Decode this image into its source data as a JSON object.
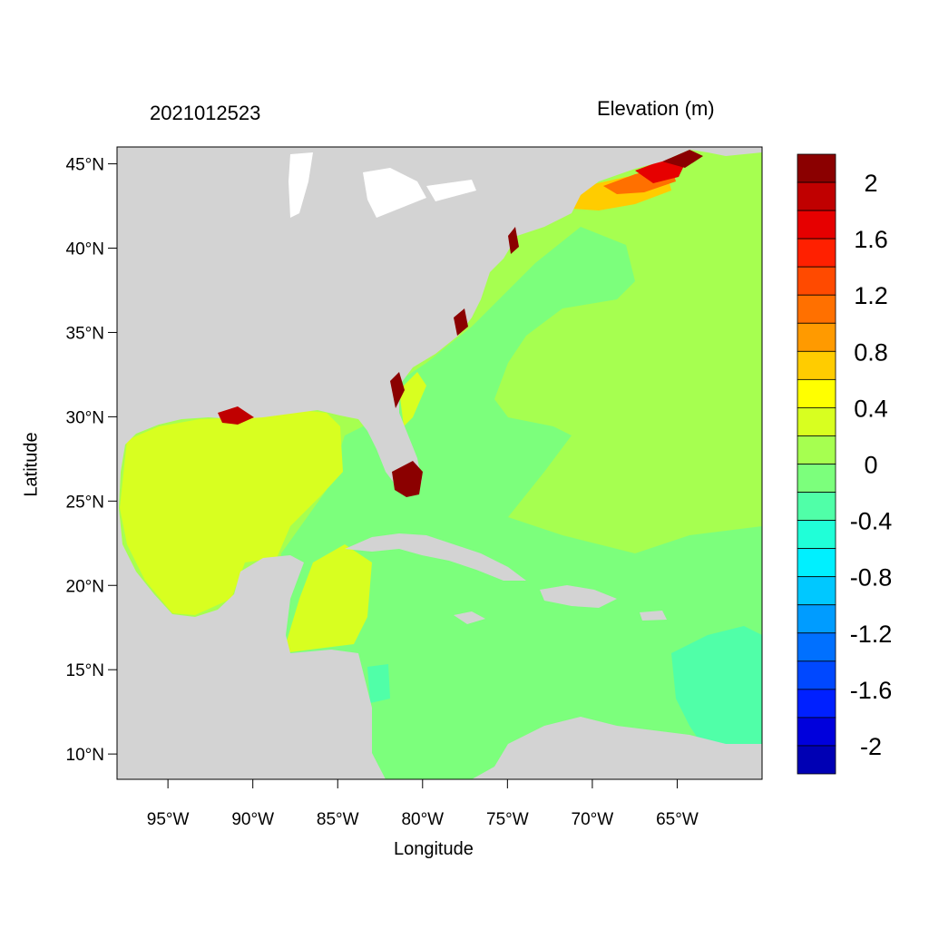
{
  "header": {
    "timestamp": "2021012523",
    "variable": "Elevation (m)"
  },
  "axes": {
    "x_title": "Longitude",
    "y_title": "Latitude",
    "lat_ticks": [
      "45°N",
      "40°N",
      "35°N",
      "30°N",
      "25°N",
      "20°N",
      "15°N",
      "10°N"
    ],
    "lon_ticks": [
      "95°W",
      "90°W",
      "85°W",
      "80°W",
      "75°W",
      "70°W",
      "65°W"
    ],
    "lat_values": [
      45,
      40,
      35,
      30,
      25,
      20,
      15,
      10
    ],
    "lon_values": [
      -95,
      -90,
      -85,
      -80,
      -75,
      -70,
      -65
    ],
    "lat_range": [
      8.5,
      46
    ],
    "lon_range": [
      -98,
      -60
    ]
  },
  "colorbar": {
    "labels": [
      "2",
      "1.6",
      "1.2",
      "0.8",
      "0.4",
      "0",
      "-0.4",
      "-0.8",
      "-1.2",
      "-1.6",
      "-2"
    ],
    "colors_top_to_bottom": [
      "#8b0000",
      "#c00000",
      "#e60000",
      "#ff2000",
      "#ff4a00",
      "#ff7000",
      "#ff9a00",
      "#ffcc00",
      "#ffff00",
      "#d8ff20",
      "#a6ff50",
      "#7cff7c",
      "#50ffa8",
      "#20ffd8",
      "#00f0ff",
      "#00c8ff",
      "#009cff",
      "#0070ff",
      "#0048ff",
      "#0020ff",
      "#0000dc",
      "#0000b4"
    ]
  },
  "colors": {
    "land": "#d3d3d3",
    "ocean_background": "#7cff7c",
    "gulf": "#d8ff20",
    "atlantic_positive": "#a6ff50",
    "caribbean_negative": "#50ffa8",
    "surge_high": "#8b0000"
  }
}
